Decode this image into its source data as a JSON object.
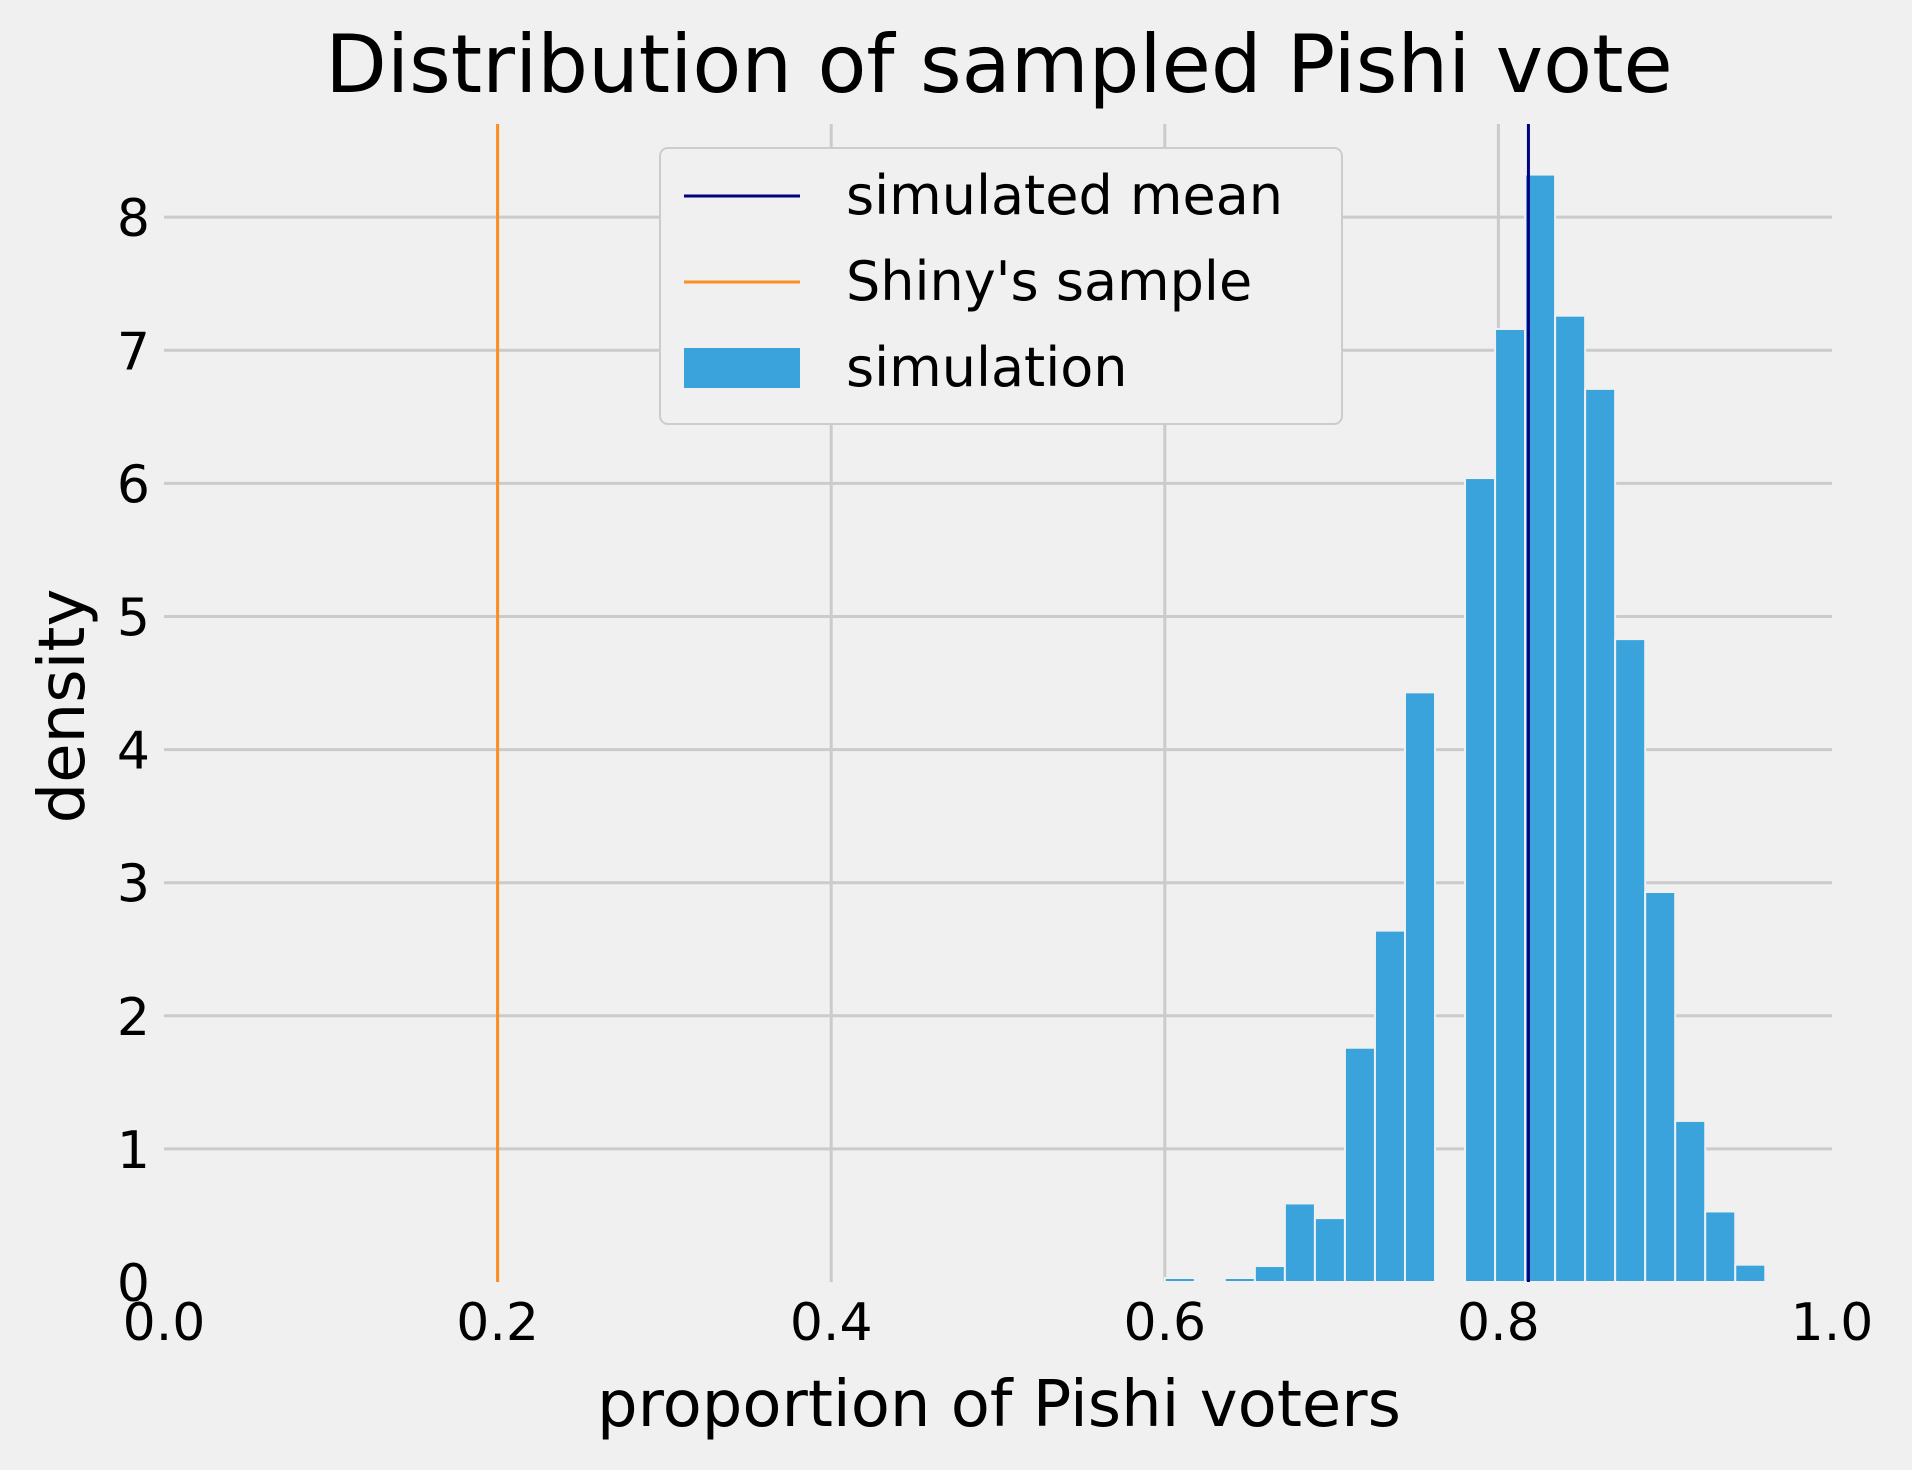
{
  "chart_data": {
    "type": "bar",
    "title": "Distribution of sampled Pishi vote",
    "xlabel": "proportion of Pishi voters",
    "ylabel": "density",
    "xlim": [
      0.0,
      1.0
    ],
    "ylim": [
      0,
      8.7
    ],
    "x_ticks": [
      "0.0",
      "0.2",
      "0.4",
      "0.6",
      "0.8",
      "1.0"
    ],
    "y_ticks": [
      "0",
      "1",
      "2",
      "3",
      "4",
      "5",
      "6",
      "7",
      "8"
    ],
    "grid": true,
    "legend_position": "top-center",
    "legend": [
      {
        "label": "simulated mean",
        "kind": "line",
        "color": "#000080"
      },
      {
        "label": "Shiny's sample",
        "kind": "line",
        "color": "#fc8d22"
      },
      {
        "label": "simulation",
        "kind": "patch",
        "color": "#3aa3db"
      }
    ],
    "series": [
      {
        "name": "simulation",
        "color": "#3aa3db",
        "bin_width": 0.018,
        "bins": [
          {
            "x0": 0.6,
            "x1": 0.618,
            "density": 0.03
          },
          {
            "x0": 0.636,
            "x1": 0.654,
            "density": 0.03
          },
          {
            "x0": 0.654,
            "x1": 0.672,
            "density": 0.12
          },
          {
            "x0": 0.672,
            "x1": 0.69,
            "density": 0.59
          },
          {
            "x0": 0.69,
            "x1": 0.708,
            "density": 0.48
          },
          {
            "x0": 0.708,
            "x1": 0.726,
            "density": 1.76
          },
          {
            "x0": 0.726,
            "x1": 0.744,
            "density": 2.64
          },
          {
            "x0": 0.744,
            "x1": 0.762,
            "density": 4.43
          },
          {
            "x0": 0.78,
            "x1": 0.798,
            "density": 6.04
          },
          {
            "x0": 0.798,
            "x1": 0.816,
            "density": 7.16
          },
          {
            "x0": 0.816,
            "x1": 0.834,
            "density": 8.32
          },
          {
            "x0": 0.834,
            "x1": 0.852,
            "density": 7.26
          },
          {
            "x0": 0.852,
            "x1": 0.87,
            "density": 6.71
          },
          {
            "x0": 0.87,
            "x1": 0.888,
            "density": 4.83
          },
          {
            "x0": 0.888,
            "x1": 0.906,
            "density": 2.93
          },
          {
            "x0": 0.906,
            "x1": 0.924,
            "density": 1.21
          },
          {
            "x0": 0.924,
            "x1": 0.942,
            "density": 0.53
          },
          {
            "x0": 0.942,
            "x1": 0.96,
            "density": 0.13
          }
        ]
      }
    ],
    "reference_lines": [
      {
        "name": "simulated mean",
        "x": 0.818,
        "color": "#000080"
      },
      {
        "name": "Shiny's sample",
        "x": 0.2,
        "color": "#fc8d22"
      }
    ]
  }
}
